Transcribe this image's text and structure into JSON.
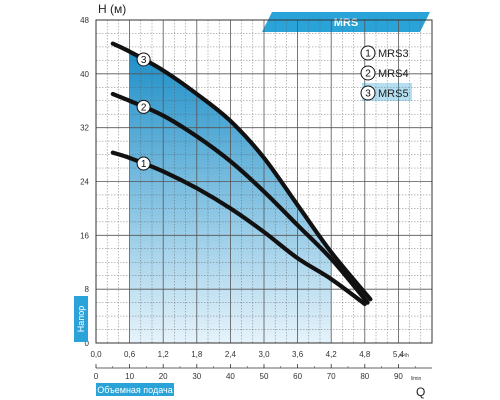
{
  "colors": {
    "accent": "#2aa3d8",
    "accent_dark": "#1b8fc4",
    "region_top": "#1e8fc8",
    "region_bottom": "#e6f3fb",
    "curve": "#111111",
    "grid": "#555555"
  },
  "banner": {
    "label": "MRS"
  },
  "y_axis_label": "Напор",
  "x_axis_label": "Объемная подача",
  "chart_data": {
    "type": "line",
    "title": "MRS",
    "ylabel": "H (м)",
    "xlabel": "Q",
    "x_unit": "m³/h",
    "x2_unit": "l/min",
    "xlim": [
      0,
      6.0
    ],
    "ylim": [
      0,
      48
    ],
    "x_ticks": [
      "0,0",
      "0,6",
      "1,2",
      "1,8",
      "2,4",
      "3,0",
      "3,6",
      "4,2",
      "4,8",
      "5,4"
    ],
    "x_tick_values": [
      0,
      0.6,
      1.2,
      1.8,
      2.4,
      3.0,
      3.6,
      4.2,
      4.8,
      5.4
    ],
    "x2_ticks": [
      "0",
      "10",
      "20",
      "30",
      "40",
      "50",
      "60",
      "70",
      "80",
      "90"
    ],
    "y_ticks": [
      "0",
      "8",
      "16",
      "24",
      "32",
      "40",
      "48"
    ],
    "y_tick_values": [
      0,
      8,
      16,
      24,
      32,
      40,
      48
    ],
    "grid": true,
    "shaded_range": [
      0.6,
      4.2
    ],
    "legend_position": "top-right",
    "series": [
      {
        "name": "MRS3",
        "marker": "1",
        "x": [
          0.3,
          0.6,
          1.2,
          1.8,
          2.4,
          3.0,
          3.6,
          4.2,
          4.8
        ],
        "y": [
          28.3,
          27.5,
          25.5,
          23.0,
          20.0,
          16.5,
          12.6,
          9.5,
          5.8
        ]
      },
      {
        "name": "MRS4",
        "marker": "2",
        "x": [
          0.3,
          0.6,
          1.2,
          1.8,
          2.4,
          3.0,
          3.6,
          4.2,
          4.85
        ],
        "y": [
          37.0,
          36.0,
          33.8,
          30.7,
          27.0,
          22.5,
          17.5,
          12.5,
          6.0
        ]
      },
      {
        "name": "MRS5",
        "marker": "3",
        "x": [
          0.3,
          0.6,
          1.2,
          1.8,
          2.4,
          3.0,
          3.6,
          4.2,
          4.9
        ],
        "y": [
          44.5,
          43.3,
          40.5,
          37.0,
          33.0,
          27.5,
          20.5,
          13.5,
          6.5
        ]
      }
    ]
  }
}
